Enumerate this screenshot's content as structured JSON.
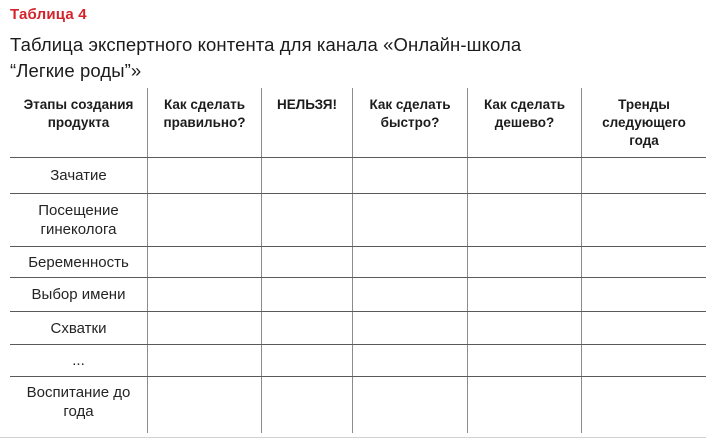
{
  "colors": {
    "accent_red": "#d5232b",
    "grid_line_horizontal": "#5a5a5a",
    "grid_line_vertical": "#8c8c8c",
    "text": "#1e1e1e"
  },
  "header": {
    "label": "Таблица 4",
    "title_line1": "Таблица экспертного контента для канала «Онлайн-школа",
    "title_line2": "“Легкие роды”»"
  },
  "table": {
    "columns": [
      "Этапы создания продукта",
      "Как сделать правильно?",
      "НЕЛЬЗЯ!",
      "Как сделать быстро?",
      "Как сделать дешево?",
      "Тренды следующего года"
    ],
    "rows": [
      "Зачатие",
      "Посещение гинеколога",
      "Беременность",
      "Выбор имени",
      "Схватки",
      "...",
      "Воспитание до года"
    ]
  }
}
